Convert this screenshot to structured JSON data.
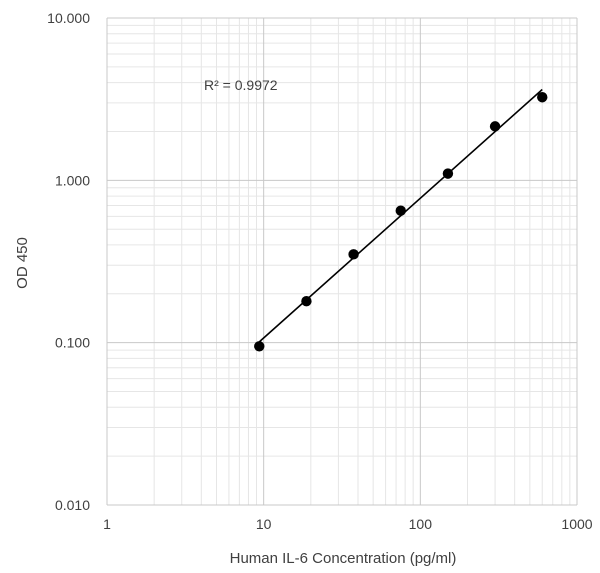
{
  "chart_data": {
    "type": "scatter",
    "title": "",
    "xlabel": "Human IL-6 Concentration (pg/ml)",
    "ylabel": "OD 450",
    "x_scale": "log",
    "y_scale": "log",
    "xlim": [
      1,
      1000
    ],
    "ylim": [
      0.01,
      10
    ],
    "x_ticks": [
      1,
      10,
      100,
      1000
    ],
    "x_tick_labels": [
      "1",
      "10",
      "100",
      "1000"
    ],
    "y_ticks": [
      0.01,
      0.1,
      1,
      10
    ],
    "y_tick_labels": [
      "0.010",
      "0.100",
      "1.000",
      "10.000"
    ],
    "grid": true,
    "legend": "none",
    "series": [
      {
        "points": [
          {
            "x": 9.375,
            "y": 0.095
          },
          {
            "x": 18.75,
            "y": 0.18
          },
          {
            "x": 37.5,
            "y": 0.35
          },
          {
            "x": 75,
            "y": 0.65
          },
          {
            "x": 150,
            "y": 1.1
          },
          {
            "x": 300,
            "y": 2.15
          },
          {
            "x": 600,
            "y": 3.25
          }
        ],
        "marker_color": "#000000",
        "trendline": {
          "type": "power",
          "color": "#000000",
          "r_squared_label": "R² = 0.9972"
        }
      }
    ]
  }
}
